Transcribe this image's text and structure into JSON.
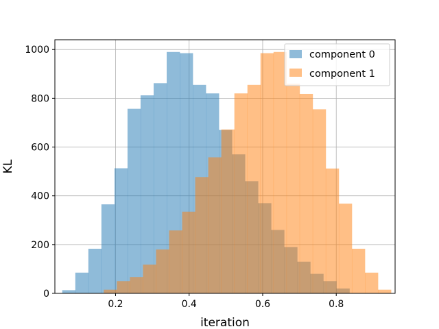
{
  "chart_data": {
    "type": "bar",
    "title": "",
    "xlabel": "iteration",
    "ylabel": "KL",
    "xlim": [
      0.035,
      0.96
    ],
    "ylim": [
      0,
      1040
    ],
    "xticks": [
      0.2,
      0.4,
      0.6,
      0.8
    ],
    "xtick_labels": [
      "0.2",
      "0.4",
      "0.6",
      "0.8"
    ],
    "yticks": [
      0,
      200,
      400,
      600,
      800,
      1000
    ],
    "ytick_labels": [
      "0",
      "200",
      "400",
      "600",
      "800",
      "1000"
    ],
    "grid": true,
    "legend_position": "upper-right",
    "series": [
      {
        "name": "component 0",
        "color": "#1f77b4",
        "opacity": 0.5,
        "bin_edges": [
          0.055,
          0.0905,
          0.126,
          0.1615,
          0.197,
          0.2325,
          0.268,
          0.3035,
          0.339,
          0.3745,
          0.41,
          0.4455,
          0.481,
          0.5165,
          0.552,
          0.5875,
          0.623,
          0.6585,
          0.694,
          0.7295,
          0.765,
          0.8005,
          0.836
        ],
        "counts": [
          13,
          85,
          183,
          365,
          513,
          757,
          812,
          862,
          990,
          985,
          855,
          820,
          670,
          570,
          460,
          370,
          260,
          190,
          130,
          80,
          50,
          20
        ]
      },
      {
        "name": "component 1",
        "color": "#ff7f0e",
        "opacity": 0.5,
        "bin_edges": [
          0.168,
          0.2035,
          0.239,
          0.2745,
          0.31,
          0.3455,
          0.381,
          0.4165,
          0.452,
          0.4875,
          0.523,
          0.5585,
          0.594,
          0.6295,
          0.665,
          0.7005,
          0.736,
          0.7715,
          0.807,
          0.8425,
          0.878,
          0.9135,
          0.949
        ],
        "counts": [
          15,
          50,
          67,
          118,
          180,
          258,
          335,
          477,
          558,
          672,
          820,
          855,
          985,
          990,
          860,
          818,
          755,
          512,
          368,
          183,
          85,
          15
        ]
      }
    ]
  }
}
